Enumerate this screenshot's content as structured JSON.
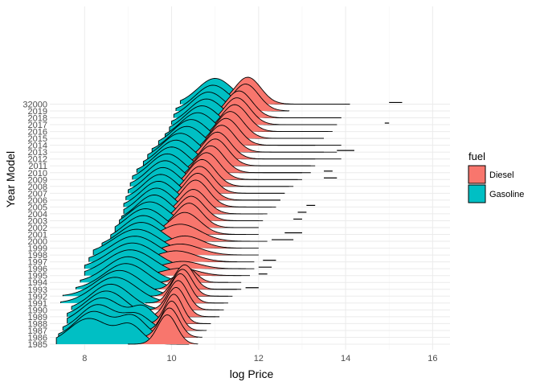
{
  "chart_data": {
    "type": "ridgeline",
    "xlabel": "log Price",
    "ylabel": "Year Model",
    "xlim": [
      7.2,
      16.4
    ],
    "x_ticks": [
      8,
      10,
      12,
      14,
      16
    ],
    "grid": true,
    "legend_title": "fuel",
    "legend_position": "right",
    "series": [
      {
        "name": "Diesel",
        "color": "#F8766D"
      },
      {
        "name": "Gasoline",
        "color": "#00BFC4"
      }
    ],
    "categories": [
      "1985",
      "1986",
      "1987",
      "1988",
      "1989",
      "1990",
      "1991",
      "1992",
      "1993",
      "1994",
      "1995",
      "1996",
      "1997",
      "1998",
      "1999",
      "2000",
      "2001",
      "2002",
      "2003",
      "2004",
      "2005",
      "2006",
      "2007",
      "2008",
      "2009",
      "2010",
      "2011",
      "2012",
      "2013",
      "2014",
      "2015",
      "2016",
      "2017",
      "2018",
      "2019",
      "32000"
    ],
    "ridges": [
      {
        "year": "1985",
        "gasoline": {
          "peaks": [
            [
              8.1,
              0.45,
              1.0
            ],
            [
              9.05,
              0.28,
              0.7
            ]
          ],
          "range": [
            7.35,
            10.4
          ]
        },
        "diesel": {
          "peaks": [
            [
              9.9,
              0.22,
              1.2
            ]
          ],
          "range": [
            9.0,
            10.6
          ]
        }
      },
      {
        "year": "1986",
        "gasoline": {
          "peaks": [
            [
              8.2,
              0.4,
              1.0
            ],
            [
              9.1,
              0.3,
              0.8
            ]
          ],
          "range": [
            7.4,
            10.6
          ]
        },
        "diesel": {
          "peaks": [
            [
              9.95,
              0.22,
              1.2
            ]
          ],
          "range": [
            9.1,
            10.7
          ]
        }
      },
      {
        "year": "1987",
        "gasoline": {
          "peaks": [
            [
              8.3,
              0.4,
              1.0
            ],
            [
              9.2,
              0.3,
              0.6
            ]
          ],
          "range": [
            7.5,
            10.7
          ]
        },
        "diesel": {
          "peaks": [
            [
              10.0,
              0.2,
              1.2
            ]
          ],
          "range": [
            9.2,
            10.8
          ]
        }
      },
      {
        "year": "1988",
        "gasoline": {
          "peaks": [
            [
              8.4,
              0.45,
              1.0
            ],
            [
              9.35,
              0.25,
              0.6
            ]
          ],
          "range": [
            7.6,
            10.9
          ]
        },
        "diesel": {
          "peaks": [
            [
              10.05,
              0.2,
              1.2
            ]
          ],
          "range": [
            9.3,
            10.9
          ]
        }
      },
      {
        "year": "1989",
        "gasoline": {
          "peaks": [
            [
              8.5,
              0.45,
              1.0
            ]
          ],
          "range": [
            7.6,
            11.1
          ]
        },
        "diesel": {
          "peaks": [
            [
              10.1,
              0.22,
              1.2
            ]
          ],
          "range": [
            9.3,
            11.0
          ]
        }
      },
      {
        "year": "1990",
        "gasoline": {
          "peaks": [
            [
              8.6,
              0.45,
              1.0
            ]
          ],
          "range": [
            7.7,
            11.2
          ]
        },
        "diesel": {
          "peaks": [
            [
              10.15,
              0.22,
              1.2
            ]
          ],
          "range": [
            9.4,
            11.1
          ]
        }
      },
      {
        "year": "1991",
        "gasoline": {
          "peaks": [
            [
              8.7,
              0.5,
              1.0
            ]
          ],
          "range": [
            7.45,
            11.3
          ]
        },
        "diesel": {
          "peaks": [
            [
              10.2,
              0.22,
              1.2
            ]
          ],
          "range": [
            9.4,
            11.2
          ]
        }
      },
      {
        "year": "1992",
        "gasoline": {
          "peaks": [
            [
              8.8,
              0.5,
              1.0
            ]
          ],
          "range": [
            7.5,
            11.4
          ]
        },
        "diesel": {
          "peaks": [
            [
              10.25,
              0.22,
              1.1
            ]
          ],
          "range": [
            9.5,
            11.3
          ]
        }
      },
      {
        "year": "1993",
        "gasoline": {
          "peaks": [
            [
              8.95,
              0.5,
              1.0
            ]
          ],
          "range": [
            7.8,
            11.5
          ]
        },
        "diesel": {
          "peaks": [
            [
              10.3,
              0.22,
              1.0
            ]
          ],
          "range": [
            9.6,
            11.6
          ]
        }
      },
      {
        "year": "1994",
        "gasoline": {
          "peaks": [
            [
              9.0,
              0.5,
              1.0
            ]
          ],
          "range": [
            7.9,
            11.6
          ]
        },
        "diesel": {
          "peaks": [
            [
              10.35,
              0.22,
              0.6
            ]
          ],
          "range": [
            9.6,
            11.3
          ]
        }
      },
      {
        "year": "1995",
        "gasoline": {
          "peaks": [
            [
              9.05,
              0.55,
              1.0
            ]
          ],
          "range": [
            8.0,
            11.8
          ]
        },
        "diesel": {
          "peaks": [
            [
              10.2,
              0.4,
              0.3
            ]
          ],
          "range": [
            9.3,
            11.6
          ]
        }
      },
      {
        "year": "1996",
        "gasoline": {
          "peaks": [
            [
              9.1,
              0.55,
              1.0
            ]
          ],
          "range": [
            8.0,
            11.9
          ]
        },
        "diesel": {
          "peaks": [
            [
              10.25,
              0.4,
              0.3
            ]
          ],
          "range": [
            9.3,
            11.7
          ]
        }
      },
      {
        "year": "1997",
        "gasoline": {
          "peaks": [
            [
              9.15,
              0.55,
              1.0
            ]
          ],
          "range": [
            8.1,
            11.9
          ]
        },
        "diesel": {
          "peaks": [
            [
              10.1,
              0.45,
              0.45
            ]
          ],
          "range": [
            9.2,
            11.5
          ]
        }
      },
      {
        "year": "1998",
        "gasoline": {
          "peaks": [
            [
              9.2,
              0.55,
              1.0
            ]
          ],
          "range": [
            8.2,
            12.0
          ]
        },
        "diesel": {
          "peaks": [
            [
              10.2,
              0.45,
              0.45
            ]
          ],
          "range": [
            9.3,
            11.6
          ]
        }
      },
      {
        "year": "1999",
        "gasoline": {
          "peaks": [
            [
              9.3,
              0.5,
              1.0
            ]
          ],
          "range": [
            8.4,
            12.0
          ]
        },
        "diesel": {
          "peaks": [
            [
              10.3,
              0.4,
              0.5
            ]
          ],
          "range": [
            9.4,
            11.6
          ]
        }
      },
      {
        "year": "2000",
        "gasoline": {
          "peaks": [
            [
              9.35,
              0.45,
              1.0
            ]
          ],
          "range": [
            8.6,
            12.2
          ]
        },
        "diesel": {
          "peaks": [
            [
              10.2,
              0.45,
              0.7
            ]
          ],
          "range": [
            9.4,
            11.8
          ]
        }
      },
      {
        "year": "2001",
        "gasoline": {
          "peaks": [
            [
              9.4,
              0.45,
              1.0
            ]
          ],
          "range": [
            8.7,
            12.0
          ]
        },
        "diesel": {
          "peaks": [
            [
              10.3,
              0.35,
              0.9
            ]
          ],
          "range": [
            9.6,
            11.7
          ]
        }
      },
      {
        "year": "2002",
        "gasoline": {
          "peaks": [
            [
              9.5,
              0.45,
              1.0
            ]
          ],
          "range": [
            8.8,
            12.0
          ]
        },
        "diesel": {
          "peaks": [
            [
              10.4,
              0.3,
              1.0
            ]
          ],
          "range": [
            9.7,
            11.8
          ]
        }
      },
      {
        "year": "2003",
        "gasoline": {
          "peaks": [
            [
              9.6,
              0.4,
              1.0
            ]
          ],
          "range": [
            8.85,
            12.1
          ]
        },
        "diesel": {
          "peaks": [
            [
              10.45,
              0.3,
              1.0
            ]
          ],
          "range": [
            9.8,
            12.0
          ]
        }
      },
      {
        "year": "2004",
        "gasoline": {
          "peaks": [
            [
              9.65,
              0.4,
              1.0
            ]
          ],
          "range": [
            8.9,
            12.2
          ]
        },
        "diesel": {
          "peaks": [
            [
              10.5,
              0.3,
              1.0
            ]
          ],
          "range": [
            9.9,
            12.1
          ]
        }
      },
      {
        "year": "2005",
        "gasoline": {
          "peaks": [
            [
              9.7,
              0.4,
              1.0
            ]
          ],
          "range": [
            8.9,
            12.4
          ]
        },
        "diesel": {
          "peaks": [
            [
              10.55,
              0.3,
              1.1
            ]
          ],
          "range": [
            9.9,
            12.3
          ]
        }
      },
      {
        "year": "2006",
        "gasoline": {
          "peaks": [
            [
              9.75,
              0.4,
              1.0
            ]
          ],
          "range": [
            8.95,
            12.5
          ]
        },
        "diesel": {
          "peaks": [
            [
              10.6,
              0.3,
              1.1
            ]
          ],
          "range": [
            10.0,
            12.5
          ]
        }
      },
      {
        "year": "2007",
        "gasoline": {
          "peaks": [
            [
              9.8,
              0.4,
              1.0
            ]
          ],
          "range": [
            9.0,
            12.6
          ]
        },
        "diesel": {
          "peaks": [
            [
              10.65,
              0.3,
              1.1
            ]
          ],
          "range": [
            10.0,
            12.6
          ]
        }
      },
      {
        "year": "2008",
        "gasoline": {
          "peaks": [
            [
              9.85,
              0.4,
              1.0
            ]
          ],
          "range": [
            9.05,
            12.7
          ]
        },
        "diesel": {
          "peaks": [
            [
              10.7,
              0.3,
              1.1
            ]
          ],
          "range": [
            10.1,
            12.8
          ]
        }
      },
      {
        "year": "2009",
        "gasoline": {
          "peaks": [
            [
              9.9,
              0.4,
              1.0
            ]
          ],
          "range": [
            9.1,
            12.9
          ]
        },
        "diesel": {
          "peaks": [
            [
              10.8,
              0.3,
              1.1
            ]
          ],
          "range": [
            10.1,
            13.0
          ]
        }
      },
      {
        "year": "2010",
        "gasoline": {
          "peaks": [
            [
              10.0,
              0.4,
              1.0
            ]
          ],
          "range": [
            9.2,
            13.0
          ]
        },
        "diesel": {
          "peaks": [
            [
              10.9,
              0.3,
              1.1
            ]
          ],
          "range": [
            10.2,
            13.2
          ]
        }
      },
      {
        "year": "2011",
        "gasoline": {
          "peaks": [
            [
              10.1,
              0.4,
              1.0
            ]
          ],
          "range": [
            9.35,
            13.2
          ]
        },
        "diesel": {
          "peaks": [
            [
              11.0,
              0.3,
              1.1
            ]
          ],
          "range": [
            10.3,
            13.3
          ]
        }
      },
      {
        "year": "2012",
        "gasoline": {
          "peaks": [
            [
              10.2,
              0.4,
              1.0
            ]
          ],
          "range": [
            9.45,
            13.3
          ]
        },
        "diesel": {
          "peaks": [
            [
              11.05,
              0.3,
              1.1
            ]
          ],
          "range": [
            10.4,
            13.9
          ]
        }
      },
      {
        "year": "2013",
        "gasoline": {
          "peaks": [
            [
              10.35,
              0.4,
              1.0
            ]
          ],
          "range": [
            9.55,
            13.5
          ]
        },
        "diesel": {
          "peaks": [
            [
              11.15,
              0.3,
              1.1
            ]
          ],
          "range": [
            10.5,
            13.8
          ]
        }
      },
      {
        "year": "2014",
        "gasoline": {
          "peaks": [
            [
              10.45,
              0.4,
              1.0
            ]
          ],
          "range": [
            9.7,
            13.3
          ]
        },
        "diesel": {
          "peaks": [
            [
              11.25,
              0.3,
              1.1
            ]
          ],
          "range": [
            10.6,
            13.9
          ]
        }
      },
      {
        "year": "2015",
        "gasoline": {
          "peaks": [
            [
              10.6,
              0.4,
              1.0
            ]
          ],
          "range": [
            9.85,
            13.5
          ]
        },
        "diesel": {
          "peaks": [
            [
              11.35,
              0.3,
              1.1
            ]
          ],
          "range": [
            10.7,
            13.5
          ]
        }
      },
      {
        "year": "2016",
        "gasoline": {
          "peaks": [
            [
              10.7,
              0.4,
              1.0
            ]
          ],
          "range": [
            9.95,
            13.6
          ]
        },
        "diesel": {
          "peaks": [
            [
              11.45,
              0.3,
              1.1
            ]
          ],
          "range": [
            10.8,
            13.7
          ]
        }
      },
      {
        "year": "2017",
        "gasoline": {
          "peaks": [
            [
              10.8,
              0.4,
              1.0
            ]
          ],
          "range": [
            10.0,
            13.8
          ]
        },
        "diesel": {
          "peaks": [
            [
              11.5,
              0.3,
              1.1
            ]
          ],
          "range": [
            10.9,
            13.8
          ]
        }
      },
      {
        "year": "2018",
        "gasoline": {
          "peaks": [
            [
              10.85,
              0.4,
              1.0
            ]
          ],
          "range": [
            10.05,
            13.9
          ]
        },
        "diesel": {
          "peaks": [
            [
              11.55,
              0.3,
              1.1
            ]
          ],
          "range": [
            10.95,
            13.9
          ]
        }
      },
      {
        "year": "2019",
        "gasoline": {
          "peaks": [
            [
              10.95,
              0.4,
              1.0
            ]
          ],
          "range": [
            10.1,
            12.7
          ]
        },
        "diesel": {
          "peaks": [
            [
              11.7,
              0.3,
              1.1
            ]
          ],
          "range": [
            11.0,
            12.7
          ]
        }
      },
      {
        "year": "32000",
        "gasoline": {
          "peaks": [
            [
              11.0,
              0.4,
              1.0
            ]
          ],
          "range": [
            10.2,
            14.1
          ]
        },
        "diesel": {
          "peaks": [
            [
              11.75,
              0.3,
              1.1
            ]
          ],
          "range": [
            11.0,
            14.1
          ]
        }
      }
    ],
    "outlier_segments": [
      {
        "year": "1993",
        "range": [
          11.7,
          12.0
        ]
      },
      {
        "year": "1995",
        "range": [
          12.0,
          12.2
        ]
      },
      {
        "year": "1996",
        "range": [
          12.0,
          12.3
        ]
      },
      {
        "year": "1997",
        "range": [
          12.1,
          12.4
        ]
      },
      {
        "year": "2000",
        "range": [
          12.3,
          12.8
        ]
      },
      {
        "year": "2001",
        "range": [
          12.6,
          13.0
        ]
      },
      {
        "year": "2003",
        "range": [
          12.8,
          13.0
        ]
      },
      {
        "year": "2004",
        "range": [
          12.9,
          13.1
        ]
      },
      {
        "year": "2005",
        "range": [
          13.1,
          13.3
        ]
      },
      {
        "year": "2009",
        "range": [
          13.5,
          13.8
        ]
      },
      {
        "year": "2010",
        "range": [
          13.5,
          13.7
        ]
      },
      {
        "year": "2013",
        "range": [
          13.8,
          14.2
        ]
      },
      {
        "year": "2017",
        "range": [
          14.9,
          15.0
        ]
      },
      {
        "year": "32000",
        "range": [
          15.0,
          15.3
        ]
      }
    ]
  }
}
